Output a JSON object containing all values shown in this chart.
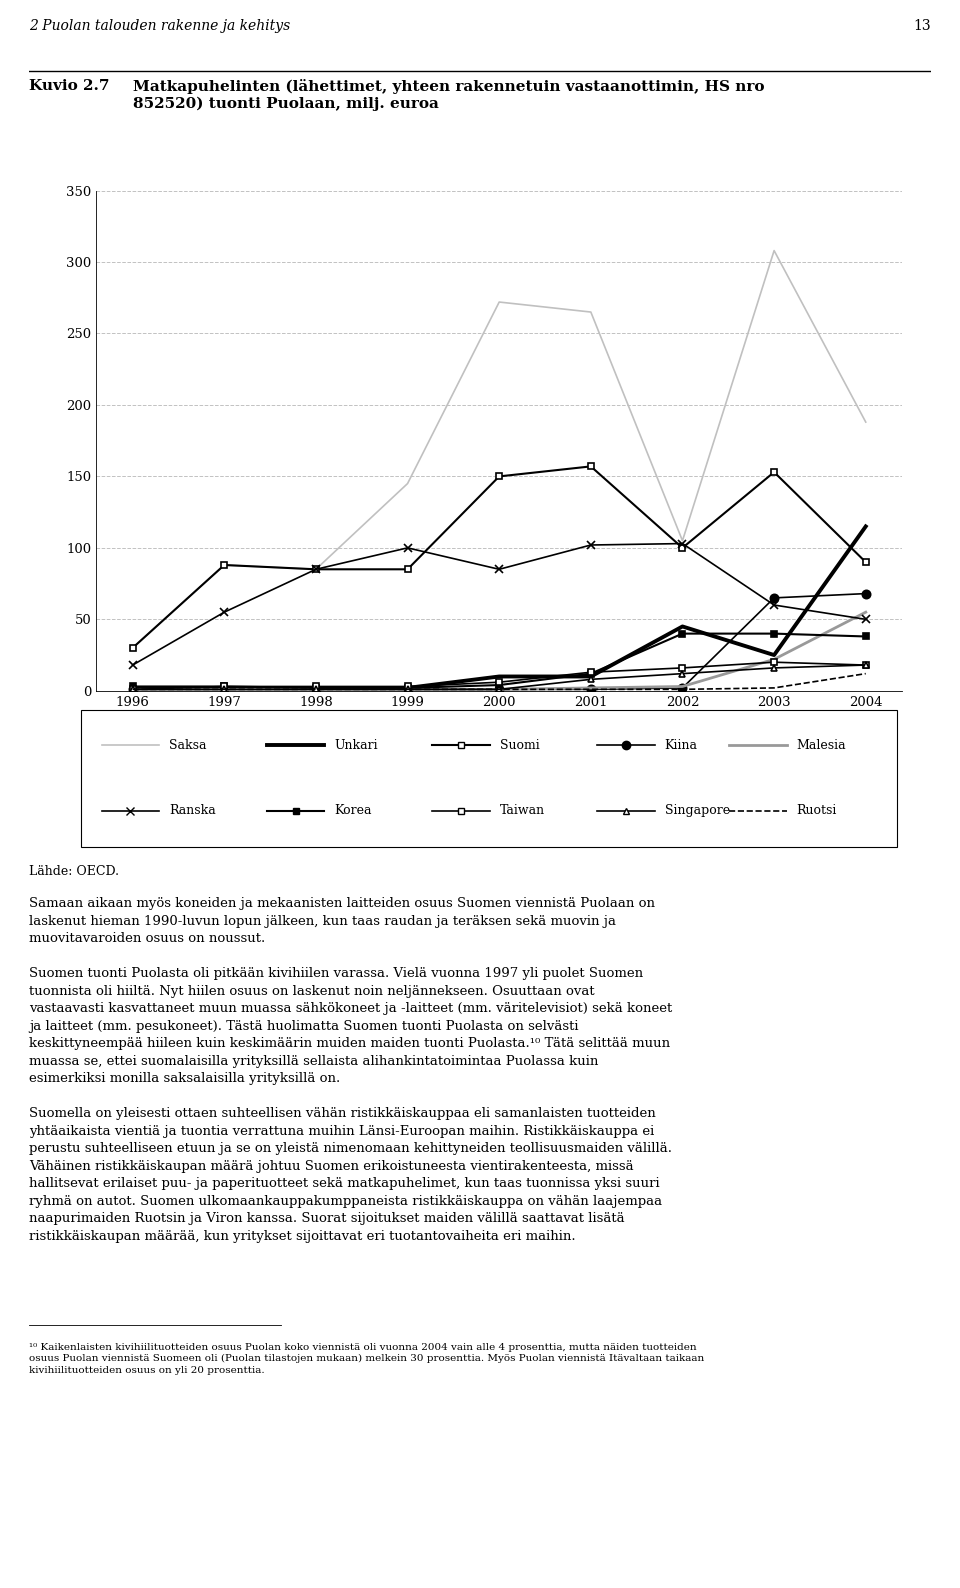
{
  "years": [
    1996,
    1997,
    1998,
    1999,
    2000,
    2001,
    2002,
    2003,
    2004
  ],
  "title_kuvio": "Kuvio 2.7",
  "title_text": "Matkapuhelinten (lähettimet, yhteen rakennetuin vastaanottimin, HS nro 852520) tuonti Puolaan, milj. euroa",
  "header": "2 Puolan talouden rakenne ja kehitys",
  "page_num": "13",
  "source": "Lähde: OECD.",
  "series": {
    "Saksa": [
      30,
      88,
      85,
      145,
      272,
      265,
      105,
      308,
      188
    ],
    "Unkari": [
      2,
      2,
      2,
      2,
      10,
      10,
      45,
      25,
      115
    ],
    "Suomi": [
      30,
      88,
      85,
      85,
      150,
      157,
      100,
      153,
      90
    ],
    "Kiina": [
      1,
      1,
      1,
      1,
      1,
      1,
      2,
      65,
      68
    ],
    "Malesia": [
      1,
      1,
      1,
      1,
      1,
      2,
      3,
      22,
      55
    ],
    "Ranska": [
      18,
      55,
      85,
      100,
      85,
      102,
      103,
      60,
      50
    ],
    "Korea": [
      3,
      3,
      2,
      2,
      4,
      12,
      40,
      40,
      38
    ],
    "Taiwan": [
      1,
      3,
      3,
      3,
      6,
      13,
      16,
      20,
      18
    ],
    "Singapore": [
      1,
      1,
      1,
      1,
      1,
      8,
      12,
      16,
      18
    ],
    "Ruotsi": [
      1,
      1,
      1,
      1,
      1,
      1,
      1,
      2,
      12
    ]
  },
  "styles": {
    "Saksa": {
      "color": "#c0c0c0",
      "lw": 1.2,
      "ls": "-",
      "marker": null,
      "ms": 5,
      "mfc": null
    },
    "Unkari": {
      "color": "#000000",
      "lw": 2.8,
      "ls": "-",
      "marker": null,
      "ms": 5,
      "mfc": null
    },
    "Suomi": {
      "color": "#000000",
      "lw": 1.5,
      "ls": "-",
      "marker": "s",
      "ms": 5,
      "mfc": "white"
    },
    "Kiina": {
      "color": "#000000",
      "lw": 1.2,
      "ls": "-",
      "marker": "o",
      "ms": 6,
      "mfc": "#000000"
    },
    "Malesia": {
      "color": "#999999",
      "lw": 2.0,
      "ls": "-",
      "marker": null,
      "ms": 5,
      "mfc": null
    },
    "Ranska": {
      "color": "#000000",
      "lw": 1.2,
      "ls": "-",
      "marker": "x",
      "ms": 6,
      "mfc": "#000000"
    },
    "Korea": {
      "color": "#000000",
      "lw": 1.5,
      "ls": "-",
      "marker": "s",
      "ms": 5,
      "mfc": "#000000"
    },
    "Taiwan": {
      "color": "#000000",
      "lw": 1.2,
      "ls": "-",
      "marker": "s",
      "ms": 5,
      "mfc": "white"
    },
    "Singapore": {
      "color": "#000000",
      "lw": 1.2,
      "ls": "-",
      "marker": "^",
      "ms": 5,
      "mfc": "white"
    },
    "Ruotsi": {
      "color": "#000000",
      "lw": 1.2,
      "ls": "--",
      "marker": null,
      "ms": 5,
      "mfc": null
    }
  },
  "ylim": [
    0,
    350
  ],
  "yticks": [
    0,
    50,
    100,
    150,
    200,
    250,
    300,
    350
  ],
  "background_color": "#ffffff",
  "grid_color": "#bbbbbb",
  "body_text_paragraphs": [
    "Samaan aikaan myös koneiden ja mekaanisten laitteiden osuus Suomen viennistä Puolaan on laskenut hieman 1990-luvun lopun jälkeen, kun taas raudan ja teräksen sekä muovin ja muovitavaroiden osuus on noussut.",
    "Suomen tuonti Puolasta oli pitkään kivihiilen varassa. Vielä vuonna 1997 yli puolet Suomen tuonnista oli hiiltä. Nyt hiilen osuus on laskenut noin neljännekseen. Osuuttaan ovat vastaavasti kasvattaneet muun muassa sähkökoneet ja -laitteet (mm. väritelevisiot) sekä koneet ja laitteet (mm. pesukoneet). Tästä huolimatta Suomen tuonti Puolasta on selvästi keskittyneempää hiileen kuin keskimäärin muiden maiden tuonti Puolasta.¹⁰ Tätä selittää muun muassa se, ettei suomalaisilla yrityksillä sellaista alihankintatoimintaa Puolassa kuin esimerkiksi monilla saksalaisilla yrityksillä on.",
    "Suomella on yleisesti ottaen suhteellisen vähän ristikkäiskauppaa eli samanlaisten tuotteiden yhtäaikaista vientiä ja tuontia verrattuna muihin Länsi-Euroopan maihin. Ristikkäiskauppa ei perustu suhteelliseen etuun ja se on yleistä nimenomaan kehittyneiden teollisuusmaiden välillä. Vähäinen ristikkäiskaupan määrä johtuu Suomen erikoistuneesta vientirakenteesta, missä hallitsevat erilaiset puu- ja paperituotteet sekä matkapuhelimet, kun taas tuonnissa yksi suuri ryhmä on autot. Suomen ulkomaankauppakumppaneista ristikkäiskauppa on vähän laajempaa naapurimaiden Ruotsin ja Viron kanssa. Suorat sijoitukset maiden välillä saattavat lisätä ristikkäiskaupan määrää, kun yritykset sijoittavat eri tuotantovaiheita eri maihin."
  ],
  "footnote": "¹⁰ Kaikenlaisten kivihiilituotteiden osuus Puolan koko viennistä oli vuonna 2004 vain alle 4 prosenttia, mutta näiden tuotteiden osuus Puolan viennistä Suomeen oli (Puolan tilastojen mukaan) melkein 30 prosenttia. Myös Puolan viennistä Itävaltaan taikaan kivihiilituotteiden osuus on yli 20 prosenttia."
}
